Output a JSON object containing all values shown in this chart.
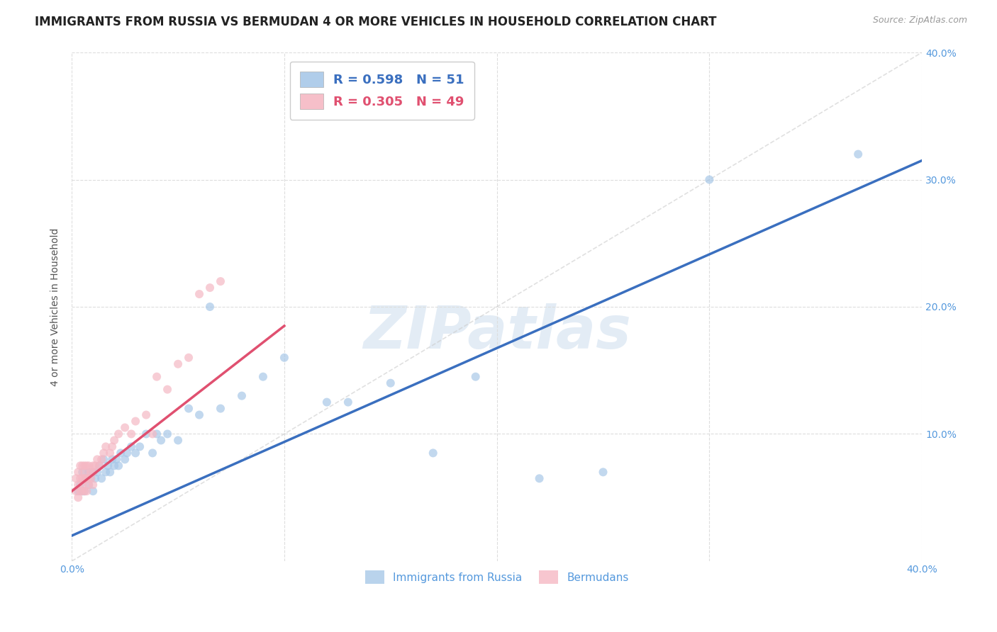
{
  "title": "IMMIGRANTS FROM RUSSIA VS BERMUDAN 4 OR MORE VEHICLES IN HOUSEHOLD CORRELATION CHART",
  "source": "Source: ZipAtlas.com",
  "ylabel": "4 or more Vehicles in Household",
  "xlim": [
    0.0,
    0.4
  ],
  "ylim": [
    0.0,
    0.4
  ],
  "xtick_values": [
    0.0,
    0.1,
    0.2,
    0.3,
    0.4
  ],
  "ytick_values": [
    0.1,
    0.2,
    0.3,
    0.4
  ],
  "background_color": "#ffffff",
  "grid_color": "#dddddd",
  "blue_color": "#a8c8e8",
  "pink_color": "#f5b8c4",
  "blue_line_color": "#3a6fbf",
  "pink_line_color": "#e05070",
  "diag_line_color": "#cccccc",
  "tick_color": "#5599dd",
  "watermark_text": "ZIPatlas",
  "legend_blue_r": "0.598",
  "legend_blue_n": "51",
  "legend_pink_r": "0.305",
  "legend_pink_n": "49",
  "bottom_legend_labels": [
    "Immigrants from Russia",
    "Bermudans"
  ],
  "blue_line_x0": 0.0,
  "blue_line_y0": 0.02,
  "blue_line_x1": 0.4,
  "blue_line_y1": 0.315,
  "pink_line_x0": 0.0,
  "pink_line_y0": 0.055,
  "pink_line_x1": 0.1,
  "pink_line_y1": 0.185,
  "scatter_blue_x": [
    0.003,
    0.004,
    0.005,
    0.005,
    0.006,
    0.007,
    0.008,
    0.008,
    0.009,
    0.01,
    0.01,
    0.011,
    0.012,
    0.013,
    0.014,
    0.015,
    0.016,
    0.017,
    0.018,
    0.019,
    0.02,
    0.021,
    0.022,
    0.023,
    0.025,
    0.026,
    0.028,
    0.03,
    0.032,
    0.035,
    0.038,
    0.04,
    0.042,
    0.045,
    0.05,
    0.055,
    0.06,
    0.065,
    0.07,
    0.08,
    0.09,
    0.1,
    0.12,
    0.13,
    0.15,
    0.17,
    0.19,
    0.22,
    0.25,
    0.3,
    0.37
  ],
  "scatter_blue_y": [
    0.055,
    0.06,
    0.055,
    0.07,
    0.055,
    0.065,
    0.06,
    0.07,
    0.065,
    0.055,
    0.07,
    0.065,
    0.07,
    0.075,
    0.065,
    0.08,
    0.07,
    0.075,
    0.07,
    0.08,
    0.075,
    0.08,
    0.075,
    0.085,
    0.08,
    0.085,
    0.09,
    0.085,
    0.09,
    0.1,
    0.085,
    0.1,
    0.095,
    0.1,
    0.095,
    0.12,
    0.115,
    0.2,
    0.12,
    0.13,
    0.145,
    0.16,
    0.125,
    0.125,
    0.14,
    0.085,
    0.145,
    0.065,
    0.07,
    0.3,
    0.32
  ],
  "scatter_pink_x": [
    0.002,
    0.002,
    0.003,
    0.003,
    0.003,
    0.004,
    0.004,
    0.004,
    0.005,
    0.005,
    0.005,
    0.005,
    0.006,
    0.006,
    0.006,
    0.006,
    0.007,
    0.007,
    0.007,
    0.008,
    0.008,
    0.008,
    0.009,
    0.009,
    0.01,
    0.01,
    0.01,
    0.011,
    0.012,
    0.013,
    0.014,
    0.015,
    0.016,
    0.018,
    0.019,
    0.02,
    0.022,
    0.025,
    0.028,
    0.03,
    0.035,
    0.038,
    0.04,
    0.045,
    0.05,
    0.055,
    0.06,
    0.065,
    0.07
  ],
  "scatter_pink_y": [
    0.055,
    0.065,
    0.05,
    0.06,
    0.07,
    0.055,
    0.065,
    0.075,
    0.055,
    0.06,
    0.065,
    0.075,
    0.055,
    0.065,
    0.07,
    0.075,
    0.055,
    0.065,
    0.075,
    0.06,
    0.065,
    0.075,
    0.065,
    0.07,
    0.06,
    0.07,
    0.075,
    0.075,
    0.08,
    0.075,
    0.08,
    0.085,
    0.09,
    0.085,
    0.09,
    0.095,
    0.1,
    0.105,
    0.1,
    0.11,
    0.115,
    0.1,
    0.145,
    0.135,
    0.155,
    0.16,
    0.21,
    0.215,
    0.22
  ],
  "marker_size": 75,
  "title_fontsize": 12,
  "axis_label_fontsize": 10,
  "tick_fontsize": 10
}
